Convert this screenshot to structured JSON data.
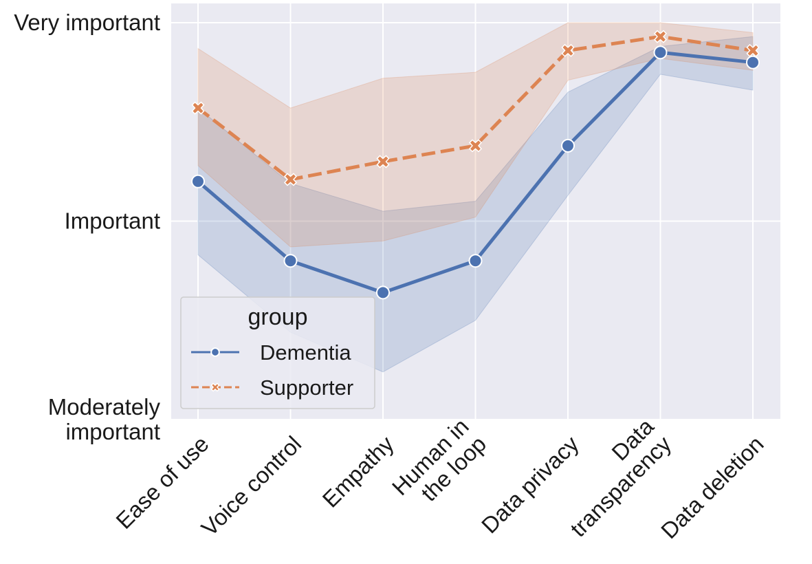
{
  "chart_data": {
    "type": "line",
    "title": "",
    "xlabel": "",
    "ylabel": "",
    "categories": [
      [
        "Ease of use"
      ],
      [
        "Voice control"
      ],
      [
        "Empathy"
      ],
      [
        "Human in",
        "the loop"
      ],
      [
        "Data privacy"
      ],
      [
        "Data",
        "transparency"
      ],
      [
        "Data deletion"
      ]
    ],
    "yticks": [
      {
        "value": 2,
        "label": [
          "Moderately",
          "important"
        ]
      },
      {
        "value": 3,
        "label": [
          "Important"
        ]
      },
      {
        "value": 4,
        "label": [
          "Very important"
        ]
      }
    ],
    "ylim": [
      2,
      4
    ],
    "grid": true,
    "series": [
      {
        "name": "Dementia",
        "color": "#4c72b0",
        "marker": "circle",
        "linestyle": "solid",
        "values": [
          3.2,
          2.8,
          2.64,
          2.8,
          3.38,
          3.85,
          3.8
        ],
        "ci_lower": [
          2.83,
          2.44,
          2.24,
          2.5,
          3.13,
          3.74,
          3.66
        ],
        "ci_upper": [
          3.57,
          3.19,
          3.05,
          3.1,
          3.65,
          3.88,
          3.93
        ]
      },
      {
        "name": "Supporter",
        "color": "#dd8452",
        "marker": "x",
        "linestyle": "dashed",
        "values": [
          3.57,
          3.21,
          3.3,
          3.38,
          3.86,
          3.93,
          3.86
        ],
        "ci_lower": [
          3.28,
          2.87,
          2.9,
          3.02,
          3.71,
          3.82,
          3.76
        ],
        "ci_upper": [
          3.87,
          3.57,
          3.72,
          3.75,
          4.0,
          4.0,
          3.95
        ]
      }
    ],
    "legend": {
      "title": "group",
      "position": "lower-left",
      "entries": [
        "Dementia",
        "Supporter"
      ]
    }
  }
}
